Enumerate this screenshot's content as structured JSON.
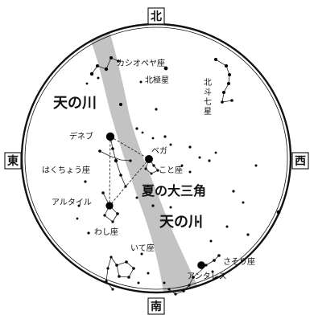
{
  "directions": {
    "north": "北",
    "south": "南",
    "east": "東",
    "west": "西"
  },
  "labels": {
    "milky_way_upper": "天の川",
    "milky_way_lower": "天の川",
    "summer_triangle": "夏の大三角",
    "cassiopeia": "カシオペヤ座",
    "polaris": "北極星",
    "big_dipper": "北斗七星",
    "deneb": "デネブ",
    "cygnus": "はくちょう座",
    "vega": "ベガ",
    "lyra": "こと座",
    "altair": "アルタイル",
    "aquila": "わし座",
    "sagittarius": "いて座",
    "scorpius": "さそり座",
    "antares": "アンタレス"
  },
  "colors": {
    "milky_way": "#b8b8b8",
    "sky": "#ffffff",
    "stars": "#000000"
  }
}
